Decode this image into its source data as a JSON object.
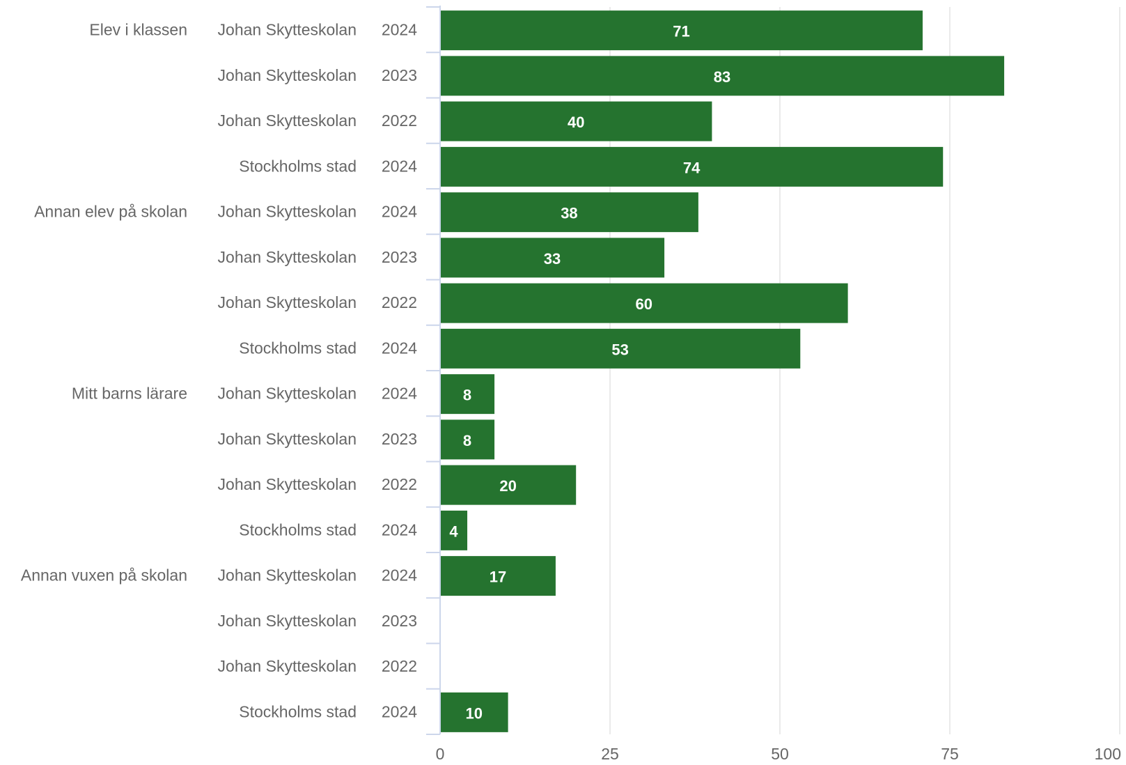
{
  "chart_data": {
    "type": "bar",
    "orientation": "horizontal",
    "xlim": [
      0,
      100
    ],
    "x_ticks": [
      0,
      25,
      50,
      75,
      100
    ],
    "grid": true,
    "bar_color": "#25732f",
    "groups": [
      {
        "name": "Elev i klassen",
        "rows": [
          {
            "category": "Johan Skytteskolan",
            "year": "2024",
            "value": 71
          },
          {
            "category": "Johan Skytteskolan",
            "year": "2023",
            "value": 83
          },
          {
            "category": "Johan Skytteskolan",
            "year": "2022",
            "value": 40
          },
          {
            "category": "Stockholms stad",
            "year": "2024",
            "value": 74
          }
        ]
      },
      {
        "name": "Annan elev på skolan",
        "rows": [
          {
            "category": "Johan Skytteskolan",
            "year": "2024",
            "value": 38
          },
          {
            "category": "Johan Skytteskolan",
            "year": "2023",
            "value": 33
          },
          {
            "category": "Johan Skytteskolan",
            "year": "2022",
            "value": 60
          },
          {
            "category": "Stockholms stad",
            "year": "2024",
            "value": 53
          }
        ]
      },
      {
        "name": "Mitt barns lärare",
        "rows": [
          {
            "category": "Johan Skytteskolan",
            "year": "2024",
            "value": 8
          },
          {
            "category": "Johan Skytteskolan",
            "year": "2023",
            "value": 8
          },
          {
            "category": "Johan Skytteskolan",
            "year": "2022",
            "value": 20
          },
          {
            "category": "Stockholms stad",
            "year": "2024",
            "value": 4
          }
        ]
      },
      {
        "name": "Annan vuxen på skolan",
        "rows": [
          {
            "category": "Johan Skytteskolan",
            "year": "2024",
            "value": 17
          },
          {
            "category": "Johan Skytteskolan",
            "year": "2023",
            "value": null
          },
          {
            "category": "Johan Skytteskolan",
            "year": "2022",
            "value": null
          },
          {
            "category": "Stockholms stad",
            "year": "2024",
            "value": 10
          }
        ]
      }
    ]
  }
}
